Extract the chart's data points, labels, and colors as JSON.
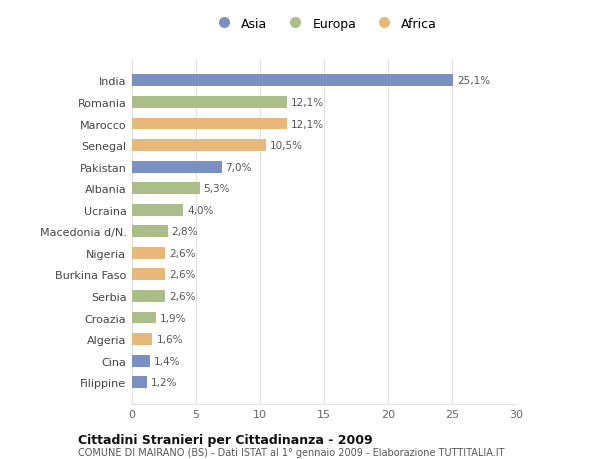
{
  "countries": [
    "India",
    "Romania",
    "Marocco",
    "Senegal",
    "Pakistan",
    "Albania",
    "Ucraina",
    "Macedonia d/N.",
    "Nigeria",
    "Burkina Faso",
    "Serbia",
    "Croazia",
    "Algeria",
    "Cina",
    "Filippine"
  ],
  "values": [
    25.1,
    12.1,
    12.1,
    10.5,
    7.0,
    5.3,
    4.0,
    2.8,
    2.6,
    2.6,
    2.6,
    1.9,
    1.6,
    1.4,
    1.2
  ],
  "labels": [
    "25,1%",
    "12,1%",
    "12,1%",
    "10,5%",
    "7,0%",
    "5,3%",
    "4,0%",
    "2,8%",
    "2,6%",
    "2,6%",
    "2,6%",
    "1,9%",
    "1,6%",
    "1,4%",
    "1,2%"
  ],
  "continents": [
    "Asia",
    "Europa",
    "Africa",
    "Africa",
    "Asia",
    "Europa",
    "Europa",
    "Europa",
    "Africa",
    "Africa",
    "Europa",
    "Europa",
    "Africa",
    "Asia",
    "Asia"
  ],
  "colors": {
    "Asia": "#7a8fc2",
    "Europa": "#abbe8a",
    "Africa": "#e8b87a"
  },
  "title": "Cittadini Stranieri per Cittadinanza - 2009",
  "subtitle": "COMUNE DI MAIRANO (BS) - Dati ISTAT al 1° gennaio 2009 - Elaborazione TUTTITALIA.IT",
  "xlim": [
    0,
    30
  ],
  "xticks": [
    0,
    5,
    10,
    15,
    20,
    25,
    30
  ],
  "background_color": "#ffffff",
  "grid_color": "#e0e0e0",
  "bar_height": 0.55
}
